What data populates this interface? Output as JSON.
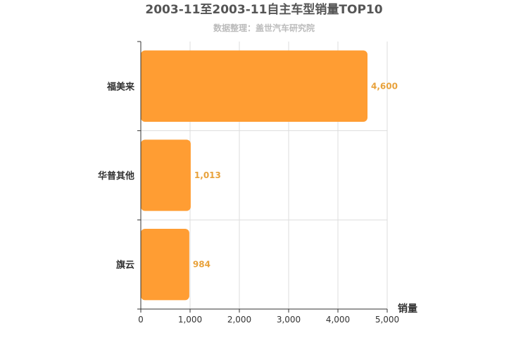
{
  "chart_data": {
    "type": "bar",
    "orientation": "horizontal",
    "title": "2003-11至2003-11自主车型销量TOP10",
    "subtitle": "数据整理：盖世汽车研究院",
    "categories": [
      "福美来",
      "华普其他",
      "旗云"
    ],
    "values": [
      4600,
      1013,
      984
    ],
    "value_labels": [
      "4,600",
      "1,013",
      "984"
    ],
    "xlabel": "销量",
    "ylabel": "",
    "xlim": [
      0,
      5000
    ],
    "ticks": [
      0,
      1000,
      2000,
      3000,
      4000,
      5000
    ],
    "tick_labels": [
      "0",
      "1,000",
      "2,000",
      "3,000",
      "4,000",
      "5,000"
    ],
    "grid": true,
    "legend": "none",
    "bar_color": "#ff9d33",
    "label_color": "#e8a23c"
  }
}
